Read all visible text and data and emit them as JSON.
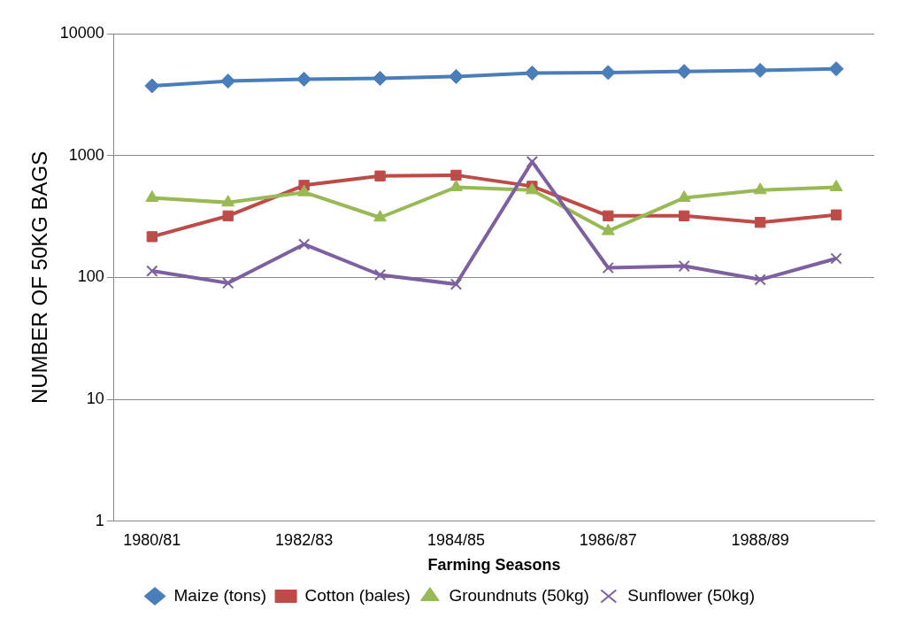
{
  "chart_data": {
    "type": "line",
    "xlabel": "Farming Seasons",
    "ylabel": "NUMBER OF 50KG BAGS",
    "categories": [
      "1980/81",
      null,
      "1982/83",
      null,
      "1984/85",
      null,
      "1986/87",
      null,
      "1988/89",
      null
    ],
    "series": [
      {
        "name": "Maize (tons)",
        "color": "#4a7ebb",
        "marker": "diamond",
        "values": [
          3730,
          4080,
          4230,
          4300,
          4450,
          4750,
          4800,
          4900,
          5000,
          5150
        ]
      },
      {
        "name": "Cotton (bales)",
        "color": "#be4b48",
        "marker": "square",
        "values": [
          216,
          320,
          570,
          680,
          690,
          560,
          320,
          320,
          283,
          326
        ]
      },
      {
        "name": "Groundnuts (50kg)",
        "color": "#98b954",
        "marker": "triangle",
        "values": [
          450,
          412,
          500,
          310,
          550,
          520,
          240,
          450,
          520,
          550
        ]
      },
      {
        "name": "Sunflower (50kg)",
        "color": "#7d60a0",
        "marker": "cross",
        "values": [
          113,
          90,
          187,
          105,
          88,
          890,
          120,
          124,
          96,
          143
        ]
      }
    ],
    "log": "y",
    "ylim": [
      1,
      10000
    ],
    "yticks": [
      1,
      10,
      100,
      1000,
      10000
    ],
    "grid": "y",
    "legend": "bottom"
  }
}
